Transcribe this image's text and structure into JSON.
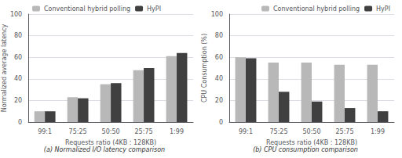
{
  "chart_data": [
    {
      "type": "bar",
      "title": "(a) Normalized I/O latency comparison",
      "categories": [
        "99:1",
        "75:25",
        "50:50",
        "25:75",
        "1:99"
      ],
      "series": [
        {
          "name": "Conventional hybrid polling",
          "color": "#b8b8b8",
          "values": [
            10,
            23,
            35,
            48,
            61
          ]
        },
        {
          "name": "HyPI",
          "color": "#404040",
          "values": [
            10,
            22,
            36,
            50,
            64
          ]
        }
      ],
      "xlabel": "Requests ratio (4KB : 128KB)",
      "ylabel": "Normalized average latency",
      "ylim": [
        0,
        100
      ],
      "yticks": [
        0,
        20,
        40,
        60,
        80,
        100
      ],
      "grid": true,
      "legend": "upper left"
    },
    {
      "type": "bar",
      "title": "(b) CPU consumption comparison",
      "categories": [
        "99:1",
        "75:25",
        "50:50",
        "25:75",
        "1:99"
      ],
      "series": [
        {
          "name": "Conventional hybrid polling",
          "color": "#b8b8b8",
          "values": [
            60,
            55,
            55,
            53,
            53
          ]
        },
        {
          "name": "HyPI",
          "color": "#404040",
          "values": [
            59,
            28,
            19,
            13,
            10
          ]
        }
      ],
      "xlabel": "Requests ratio (4KB : 128KB)",
      "ylabel": "CPU Consumption (%)",
      "ylim": [
        0,
        100
      ],
      "yticks": [
        0,
        20,
        40,
        60,
        80,
        100
      ],
      "grid": true,
      "legend": "upper right"
    }
  ]
}
